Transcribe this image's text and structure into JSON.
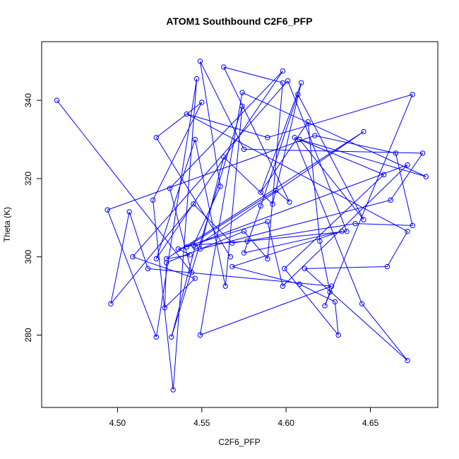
{
  "chart_data": {
    "type": "line",
    "title": "ATOM1 Southbound C2F6_PFP",
    "xlabel": "C2F6_PFP",
    "ylabel": "Theta (K)",
    "xlim": [
      4.455,
      4.69
    ],
    "ylim": [
      261.5,
      355
    ],
    "xticks": [
      4.5,
      4.55,
      4.6,
      4.65
    ],
    "xtick_labels": [
      "4.50",
      "4.55",
      "4.60",
      "4.65"
    ],
    "yticks": [
      280,
      300,
      320,
      340
    ],
    "ytick_labels": [
      "280",
      "300",
      "320",
      "340"
    ],
    "grid": false,
    "marker": "open-circle",
    "color": "#0000ff",
    "points": [
      [
        4.464,
        340.0
      ],
      [
        4.544,
        296.0
      ],
      [
        4.531,
        317.5
      ],
      [
        4.598,
        347.5
      ],
      [
        4.523,
        299.5
      ],
      [
        4.546,
        330.0
      ],
      [
        4.564,
        292.5
      ],
      [
        4.574,
        338.5
      ],
      [
        4.532,
        279.5
      ],
      [
        4.546,
        302.5
      ],
      [
        4.646,
        332.0
      ],
      [
        4.529,
        299.5
      ],
      [
        4.543,
        300.5
      ],
      [
        4.536,
        302.0
      ],
      [
        4.589,
        309.0
      ],
      [
        4.598,
        292.5
      ],
      [
        4.672,
        323.5
      ],
      [
        4.541,
        302.5
      ],
      [
        4.594,
        317.0
      ],
      [
        4.602,
        314.0
      ],
      [
        4.563,
        348.5
      ],
      [
        4.598,
        344.5
      ],
      [
        4.589,
        299.5
      ],
      [
        4.575,
        306.5
      ],
      [
        4.529,
        298.5
      ],
      [
        4.528,
        287.0
      ],
      [
        4.546,
        294.5
      ],
      [
        4.509,
        300.0
      ],
      [
        4.601,
        345.0
      ],
      [
        4.636,
        306.5
      ],
      [
        4.577,
        304.0
      ],
      [
        4.545,
        303.0
      ],
      [
        4.561,
        318.0
      ],
      [
        4.549,
        350.0
      ],
      [
        4.575,
        327.5
      ],
      [
        4.681,
        326.5
      ],
      [
        4.662,
        314.5
      ],
      [
        4.549,
        302.0
      ],
      [
        4.563,
        325.5
      ],
      [
        4.592,
        313.5
      ],
      [
        4.609,
        344.5
      ],
      [
        4.585,
        316.5
      ],
      [
        4.613,
        334.5
      ],
      [
        4.62,
        304.0
      ],
      [
        4.626,
        291.0
      ],
      [
        4.623,
        287.5
      ],
      [
        4.675,
        341.5
      ],
      [
        4.589,
        330.5
      ],
      [
        4.541,
        336.5
      ],
      [
        4.672,
        306.5
      ],
      [
        4.66,
        297.5
      ],
      [
        4.611,
        297.0
      ],
      [
        4.672,
        273.5
      ],
      [
        4.645,
        288.0
      ],
      [
        4.605,
        330.5
      ],
      [
        4.658,
        321.0
      ],
      [
        4.599,
        297.0
      ],
      [
        4.631,
        280.0
      ],
      [
        4.629,
        288.5
      ],
      [
        4.608,
        293.0
      ],
      [
        4.568,
        297.5
      ],
      [
        4.633,
        306.5
      ],
      [
        4.575,
        301.0
      ],
      [
        4.585,
        313.0
      ],
      [
        4.607,
        341.5
      ],
      [
        4.646,
        309.5
      ],
      [
        4.608,
        330.0
      ],
      [
        4.683,
        320.5
      ],
      [
        4.574,
        342.0
      ],
      [
        4.549,
        280.0
      ],
      [
        4.627,
        292.5
      ],
      [
        4.518,
        297.0
      ],
      [
        4.507,
        311.5
      ],
      [
        4.496,
        288.0
      ],
      [
        4.545,
        313.5
      ],
      [
        4.568,
        303.5
      ],
      [
        4.641,
        308.5
      ],
      [
        4.675,
        308.0
      ],
      [
        4.665,
        326.5
      ],
      [
        4.617,
        331.0
      ],
      [
        4.494,
        312.0
      ],
      [
        4.523,
        279.5
      ],
      [
        4.547,
        345.5
      ],
      [
        4.533,
        266.0
      ],
      [
        4.521,
        314.5
      ],
      [
        4.55,
        339.5
      ],
      [
        4.523,
        330.5
      ],
      [
        4.567,
        300.0
      ]
    ]
  }
}
